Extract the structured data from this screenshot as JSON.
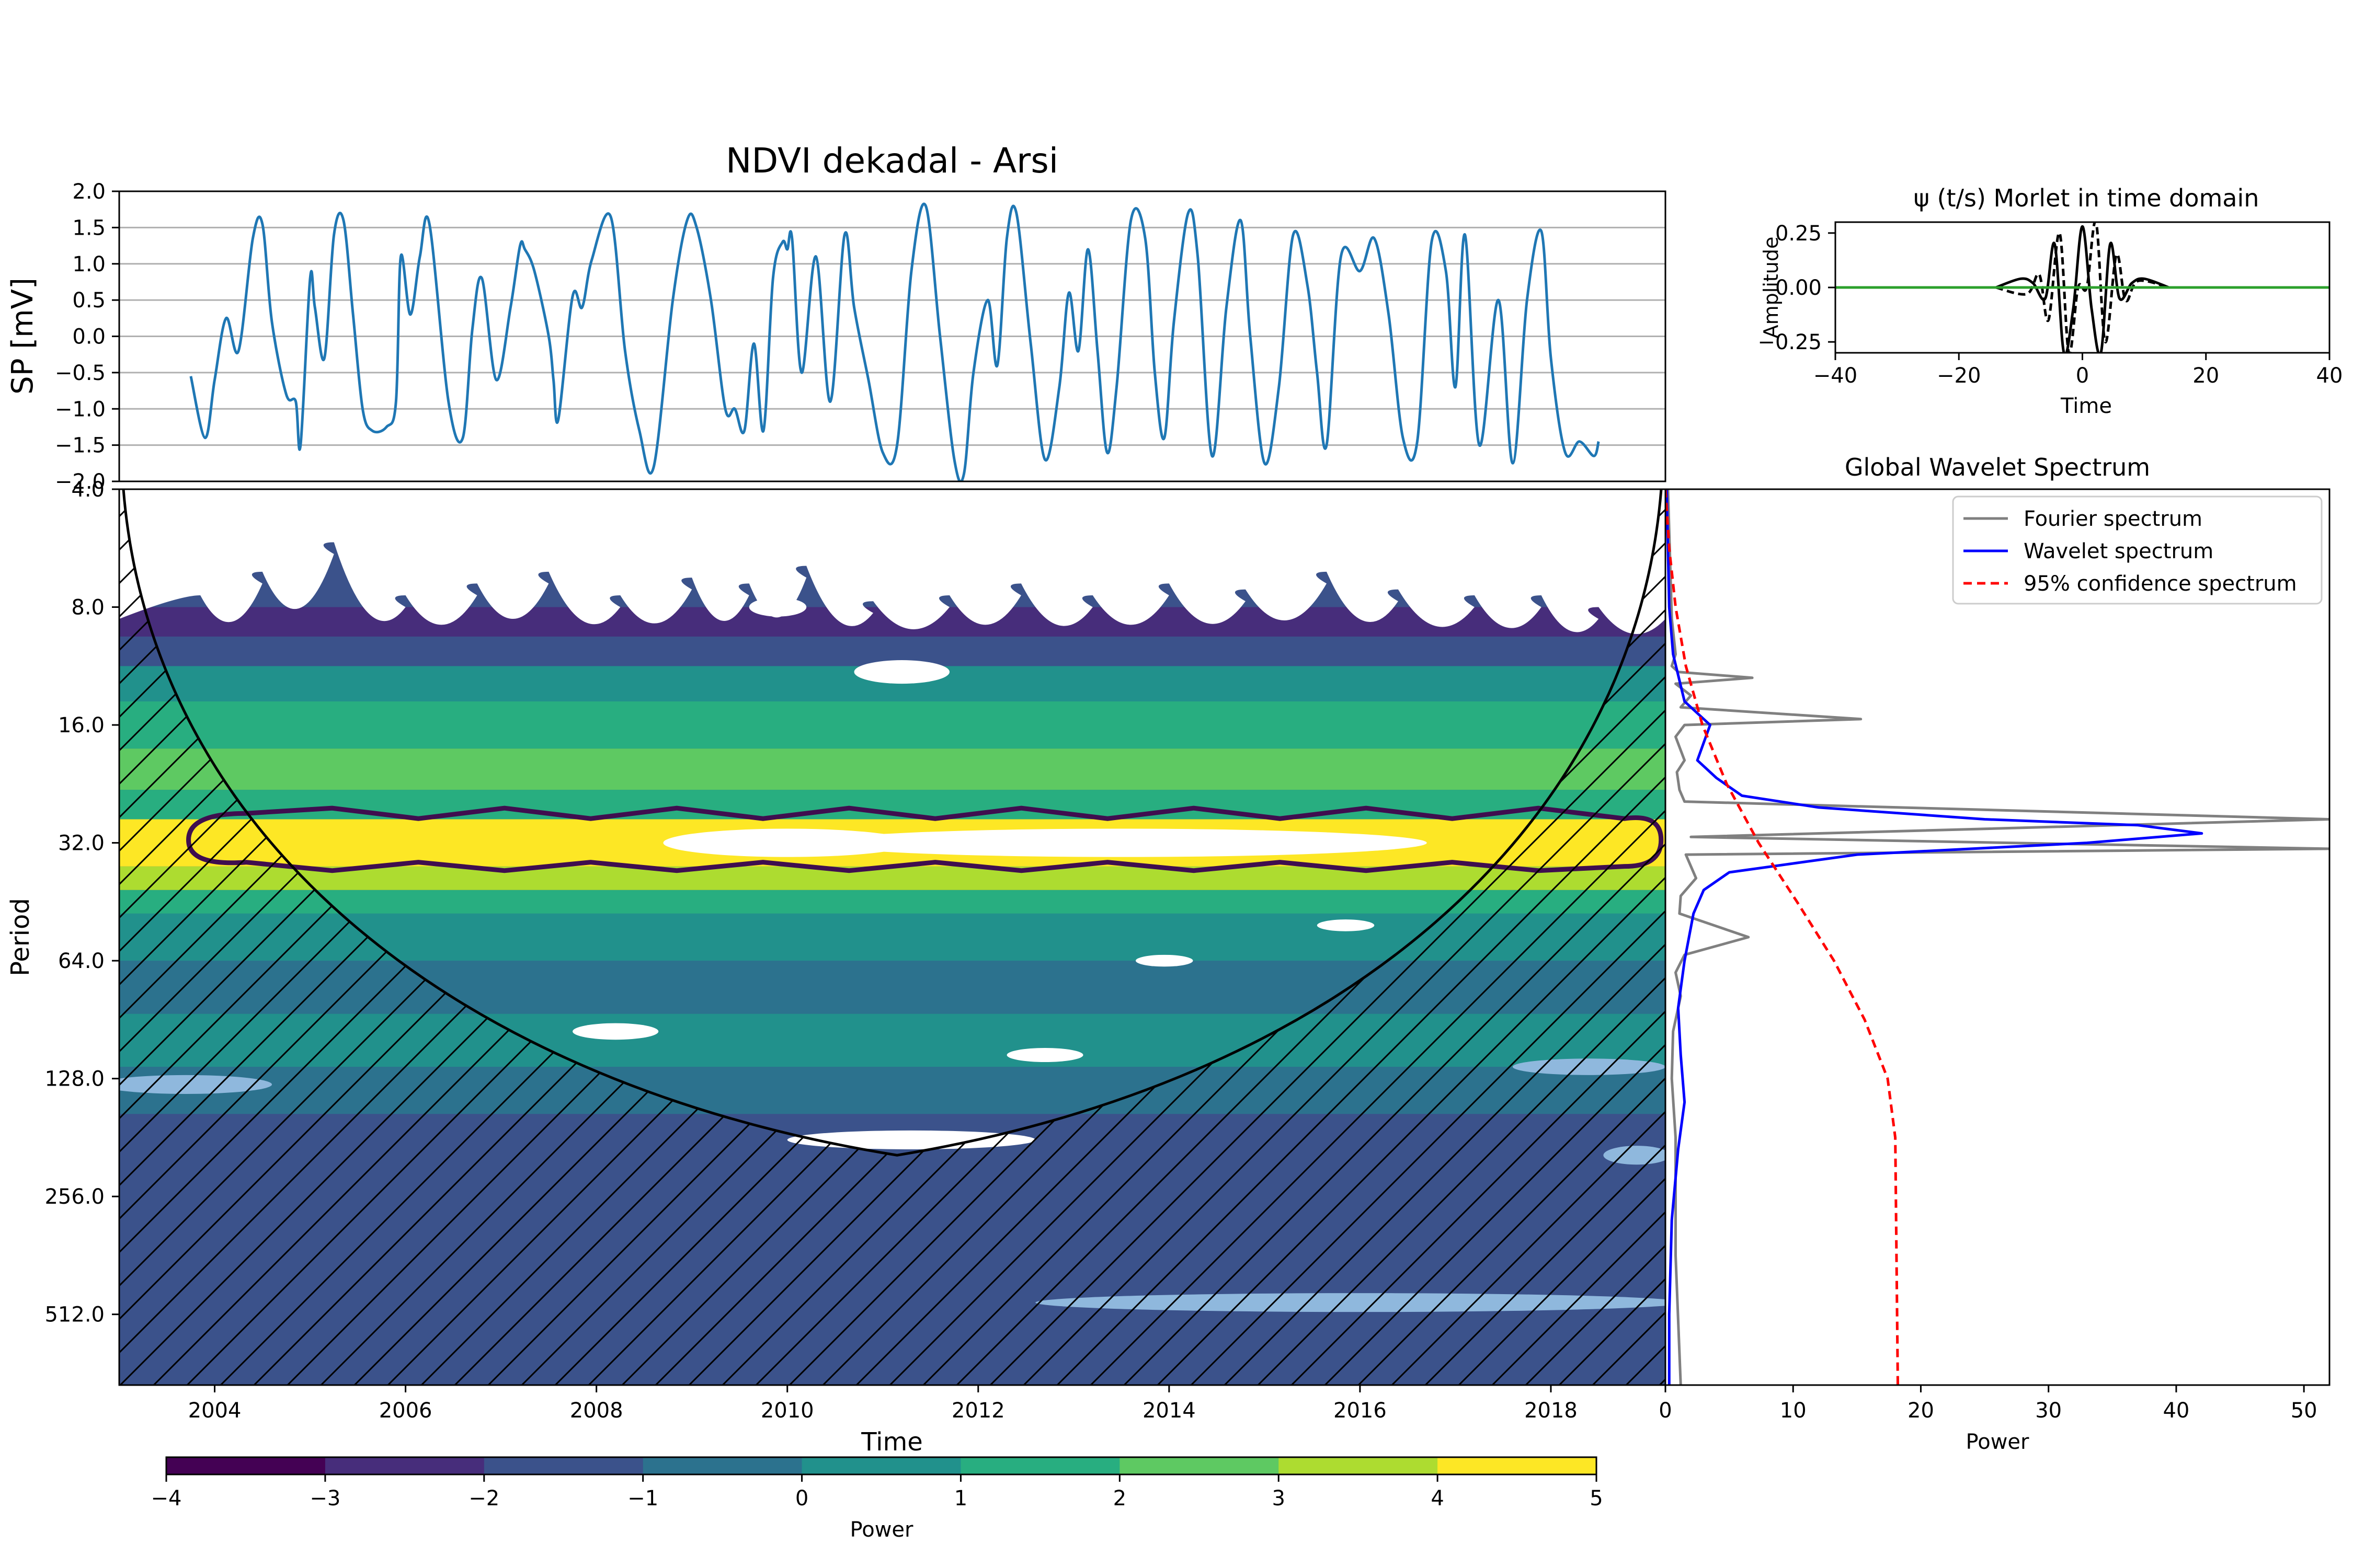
{
  "chart_data": [
    {
      "id": "timeseries",
      "type": "line",
      "title": "NDVI dekadal - Arsi",
      "xlabel": "",
      "ylabel": "SP [mV]",
      "xlim": [
        2003.0,
        2019.2
      ],
      "ylim": [
        -2.0,
        2.0
      ],
      "yticks": [
        "2.0",
        "1.5",
        "1.0",
        "0.5",
        "0.0",
        "−0.5",
        "−1.0",
        "−1.5",
        "−2.0"
      ],
      "grid": "horizontal",
      "color": "#1f77b4",
      "series": [
        {
          "x": [
            2003.75,
            2003.9,
            2004.0,
            2004.12,
            2004.25,
            2004.4,
            2004.5,
            2004.6,
            2004.75,
            2004.85,
            2004.9,
            2005.0,
            2005.05,
            2005.15,
            2005.25,
            2005.35,
            2005.45,
            2005.55,
            2005.65,
            2005.8,
            2005.9,
            2005.95,
            2006.05,
            2006.15,
            2006.25,
            2006.45,
            2006.6,
            2006.7,
            2006.8,
            2006.95,
            2007.1,
            2007.2,
            2007.25,
            2007.35,
            2007.5,
            2007.55,
            2007.6,
            2007.75,
            2007.85,
            2007.95,
            2008.15,
            2008.3,
            2008.45,
            2008.6,
            2008.8,
            2008.95,
            2009.05,
            2009.2,
            2009.35,
            2009.45,
            2009.55,
            2009.65,
            2009.75,
            2009.85,
            2009.95,
            2010.0,
            2010.05,
            2010.15,
            2010.3,
            2010.45,
            2010.6,
            2010.7,
            2010.85,
            2011.0,
            2011.15,
            2011.3,
            2011.45,
            2011.6,
            2011.75,
            2011.85,
            2011.95,
            2012.1,
            2012.2,
            2012.3,
            2012.4,
            2012.55,
            2012.7,
            2012.85,
            2012.95,
            2013.05,
            2013.15,
            2013.25,
            2013.35,
            2013.45,
            2013.6,
            2013.75,
            2013.85,
            2013.95,
            2014.05,
            2014.2,
            2014.3,
            2014.45,
            2014.6,
            2014.75,
            2014.85,
            2015.0,
            2015.15,
            2015.3,
            2015.45,
            2015.55,
            2015.65,
            2015.8,
            2016.0,
            2016.15,
            2016.3,
            2016.45,
            2016.6,
            2016.75,
            2016.9,
            2017.0,
            2017.1,
            2017.25,
            2017.45,
            2017.6,
            2017.75,
            2017.9,
            2018.0,
            2018.15,
            2018.3,
            2018.45,
            2018.5
          ],
          "y": [
            -0.55,
            -1.4,
            -0.6,
            0.25,
            -0.2,
            1.35,
            1.55,
            0.2,
            -0.8,
            -0.9,
            -1.5,
            0.8,
            0.4,
            -0.3,
            1.4,
            1.6,
            0.3,
            -1.0,
            -1.3,
            -1.25,
            -0.9,
            1.1,
            0.3,
            1.1,
            1.55,
            -0.9,
            -1.4,
            0.1,
            0.8,
            -0.6,
            0.4,
            1.25,
            1.2,
            0.9,
            0.0,
            -0.6,
            -1.15,
            0.55,
            0.4,
            1.05,
            1.65,
            -0.2,
            -1.3,
            -1.8,
            0.5,
            1.6,
            1.5,
            0.5,
            -1.0,
            -1.0,
            -1.3,
            -0.1,
            -1.3,
            0.8,
            1.3,
            1.2,
            1.35,
            -0.5,
            1.1,
            -0.9,
            1.4,
            0.4,
            -0.6,
            -1.6,
            -1.5,
            0.9,
            1.8,
            0.0,
            -1.7,
            -1.9,
            -0.5,
            0.5,
            -0.4,
            1.35,
            1.7,
            -0.1,
            -1.7,
            -0.7,
            0.6,
            -0.2,
            1.2,
            -0.2,
            -1.6,
            -0.7,
            1.6,
            1.35,
            -0.5,
            -1.4,
            0.2,
            1.7,
            1.1,
            -1.65,
            0.4,
            1.6,
            0.0,
            -1.75,
            -0.7,
            1.4,
            0.7,
            -0.5,
            -1.5,
            1.1,
            0.9,
            1.35,
            0.3,
            -1.4,
            -1.45,
            1.3,
            0.9,
            -0.7,
            1.4,
            -1.5,
            0.5,
            -1.75,
            0.5,
            1.45,
            -0.3,
            -1.6,
            -1.45,
            -1.65,
            -1.45
          ]
        }
      ]
    },
    {
      "id": "morlet",
      "type": "line",
      "title": "ψ (t/s) Morlet in time domain",
      "xlabel": "Time",
      "ylabel": "Amplitude",
      "xlim": [
        -40,
        40
      ],
      "ylim": [
        -0.3,
        0.3
      ],
      "xticks": [
        "−40",
        "−20",
        "0",
        "20",
        "40"
      ],
      "yticks": [
        "0.25",
        "0.00",
        "−0.25"
      ],
      "series": [
        {
          "style": "solid",
          "color": "#000000",
          "t": [
            -14,
            -10,
            -8,
            -6,
            -4.5,
            -3,
            -1.5,
            0,
            1.5,
            3,
            4.5,
            6,
            8,
            10,
            14
          ],
          "v": [
            0.0,
            0.04,
            0.02,
            -0.05,
            0.2,
            -0.3,
            -0.1,
            0.28,
            -0.1,
            -0.3,
            0.2,
            -0.05,
            0.02,
            0.04,
            0.0
          ]
        },
        {
          "style": "dashed",
          "color": "#000000",
          "t": [
            -14,
            -9,
            -7,
            -5.5,
            -3.7,
            -2.2,
            -0.7,
            0.7,
            2.2,
            3.7,
            5.5,
            7,
            9,
            14
          ],
          "v": [
            0.0,
            -0.03,
            0.06,
            -0.15,
            0.25,
            -0.3,
            0.0,
            0.0,
            0.3,
            -0.25,
            0.15,
            -0.06,
            0.03,
            0.0
          ]
        },
        {
          "style": "solid",
          "color": "#2ca02c",
          "t": [
            -40,
            40
          ],
          "v": [
            0.0,
            0.0
          ]
        }
      ]
    },
    {
      "id": "wavelet-power",
      "type": "heatmap",
      "xlabel": "Time",
      "ylabel": "Period",
      "xlim": [
        2003.0,
        2019.2
      ],
      "ylim_log2": [
        2.0,
        9.6
      ],
      "xticks": [
        "2004",
        "2006",
        "2008",
        "2010",
        "2012",
        "2014",
        "2016",
        "2018"
      ],
      "yticks": [
        "4.0",
        "8.0",
        "16.0",
        "32.0",
        "64.0",
        "128.0",
        "256.0",
        "512.0"
      ],
      "colorbar": {
        "label": "Power",
        "levels": [
          "−4",
          "−3",
          "−2",
          "−1",
          "0",
          "1",
          "2",
          "3",
          "4",
          "5"
        ],
        "colors": [
          "#440154",
          "#472d7b",
          "#3b528b",
          "#2c728e",
          "#21918c",
          "#28ae80",
          "#5ec962",
          "#addc30",
          "#fde725"
        ]
      },
      "bands": [
        {
          "log2_from": 6.9,
          "log2_to": 7.3,
          "color": "#2c728e"
        },
        {
          "log2_from": 6.45,
          "log2_to": 6.9,
          "color": "#21918c"
        },
        {
          "log2_from": 6.0,
          "log2_to": 6.45,
          "color": "#2c728e"
        },
        {
          "log2_from": 5.6,
          "log2_to": 6.0,
          "color": "#21918c"
        },
        {
          "log2_from": 5.4,
          "log2_to": 5.6,
          "color": "#28ae80"
        },
        {
          "log2_from": 5.2,
          "log2_to": 5.4,
          "color": "#addc30"
        },
        {
          "log2_from": 4.8,
          "log2_to": 5.2,
          "color": "#fde725"
        },
        {
          "log2_from": 4.55,
          "log2_to": 4.8,
          "color": "#28ae80"
        },
        {
          "log2_from": 4.2,
          "log2_to": 4.55,
          "color": "#5ec962"
        },
        {
          "log2_from": 3.8,
          "log2_to": 4.2,
          "color": "#28ae80"
        },
        {
          "log2_from": 3.5,
          "log2_to": 3.8,
          "color": "#21918c"
        },
        {
          "log2_from": 3.25,
          "log2_to": 3.5,
          "color": "#3b528b"
        },
        {
          "log2_from": 3.0,
          "log2_to": 3.25,
          "color": "#472d7b"
        }
      ],
      "peaks_x": [
        2003.85,
        2004.5,
        2005.25,
        2006.0,
        2006.75,
        2007.5,
        2008.25,
        2009.0,
        2009.6,
        2010.2,
        2010.9,
        2011.7,
        2012.45,
        2013.2,
        2014.0,
        2014.8,
        2015.65,
        2016.4,
        2017.2,
        2017.9,
        2018.5
      ],
      "peaks_log2": [
        2.9,
        2.7,
        2.45,
        2.9,
        2.8,
        2.7,
        2.9,
        2.75,
        2.8,
        2.65,
        2.95,
        2.9,
        2.8,
        2.9,
        2.8,
        2.85,
        2.7,
        2.85,
        2.9,
        2.9,
        3.0
      ],
      "white_blobs": [
        {
          "x": 2010.0,
          "log2": 5.0,
          "rx": 1.3,
          "rlog": 0.12
        },
        {
          "x": 2013.5,
          "log2": 5.0,
          "rx": 3.2,
          "rlog": 0.12
        },
        {
          "x": 2008.2,
          "log2": 6.6,
          "rx": 0.45,
          "rlog": 0.07
        },
        {
          "x": 2012.7,
          "log2": 6.8,
          "rx": 0.4,
          "rlog": 0.06
        },
        {
          "x": 2013.95,
          "log2": 6.0,
          "rx": 0.3,
          "rlog": 0.05
        },
        {
          "x": 2015.85,
          "log2": 5.7,
          "rx": 0.3,
          "rlog": 0.05
        },
        {
          "x": 2011.3,
          "log2": 7.52,
          "rx": 1.3,
          "rlog": 0.08
        },
        {
          "x": 2009.9,
          "log2": 3.0,
          "rx": 0.3,
          "rlog": 0.08
        },
        {
          "x": 2011.2,
          "log2": 3.55,
          "rx": 0.5,
          "rlog": 0.1
        }
      ],
      "light_blobs": [
        {
          "x": 2003.7,
          "log2": 7.05,
          "rx": 0.9,
          "rlog": 0.08
        },
        {
          "x": 2018.4,
          "log2": 6.9,
          "rx": 0.8,
          "rlog": 0.07
        },
        {
          "x": 2016.0,
          "log2": 8.9,
          "rx": 3.4,
          "rlog": 0.08
        },
        {
          "x": 2018.9,
          "log2": 7.65,
          "rx": 0.35,
          "rlog": 0.08
        }
      ],
      "significance_contour": {
        "color": "#3f0e4f",
        "top_log2": 4.75,
        "bottom_log2": 5.2,
        "x_from": 2004.0,
        "x_to": 2019.1
      },
      "cone_of_influence": {
        "x_start": 2003.0,
        "x_mid": 2011.15,
        "x_end": 2019.2,
        "max_log2": 7.65
      }
    },
    {
      "id": "global-spectrum",
      "type": "line",
      "title": "Global Wavelet Spectrum",
      "xlabel": "Power",
      "ylabel": "",
      "xlim": [
        0,
        52
      ],
      "xticks": [
        "0",
        "10",
        "20",
        "30",
        "40",
        "50"
      ],
      "legend": "top-right",
      "series": [
        {
          "name": "Fourier spectrum",
          "color": "#808080",
          "style": "solid",
          "power": [
            0.2,
            0.5,
            0.8,
            0.5,
            1.0,
            6.8,
            0.8,
            2.0,
            1.2,
            15.3,
            1.5,
            0.8,
            1.5,
            0.9,
            1.1,
            1.5,
            52.0,
            2.0,
            52.0,
            1.6,
            2.4,
            1.2,
            1.1,
            6.5,
            1.5,
            0.8,
            1.2,
            0.6,
            0.5,
            0.8,
            0.8,
            1.2
          ],
          "log2": [
            2.0,
            3.1,
            3.4,
            3.5,
            3.55,
            3.6,
            3.65,
            3.75,
            3.85,
            3.95,
            4.0,
            4.1,
            4.3,
            4.4,
            4.55,
            4.65,
            4.8,
            4.95,
            5.05,
            5.1,
            5.3,
            5.45,
            5.6,
            5.8,
            5.95,
            6.1,
            6.3,
            6.6,
            7.0,
            7.5,
            8.5,
            9.6
          ]
        },
        {
          "name": "Wavelet spectrum",
          "color": "#0000ff",
          "style": "solid",
          "power": [
            0.1,
            0.3,
            0.6,
            1.5,
            3.5,
            3.0,
            2.5,
            4.0,
            6.0,
            12.0,
            25.0,
            37.0,
            42.0,
            33.0,
            15.0,
            5.0,
            3.0,
            2.2,
            1.5,
            1.0,
            1.2,
            1.5,
            1.0,
            0.5,
            0.3,
            0.3
          ],
          "log2": [
            2.0,
            3.0,
            3.4,
            3.8,
            4.0,
            4.15,
            4.3,
            4.45,
            4.6,
            4.7,
            4.8,
            4.85,
            4.92,
            5.0,
            5.1,
            5.25,
            5.4,
            5.6,
            6.0,
            6.4,
            6.8,
            7.2,
            7.6,
            8.2,
            9.0,
            9.6
          ]
        },
        {
          "name": "95% confidence spectrum",
          "color": "#ff0000",
          "style": "dashed",
          "power": [
            0.0,
            0.3,
            0.8,
            1.6,
            2.9,
            4.8,
            7.3,
            10.3,
            13.2,
            15.6,
            17.4,
            18.0,
            18.2
          ],
          "log2": [
            2.0,
            2.5,
            3.0,
            3.5,
            4.0,
            4.5,
            5.0,
            5.5,
            6.0,
            6.5,
            7.0,
            7.5,
            9.6
          ]
        }
      ]
    }
  ]
}
